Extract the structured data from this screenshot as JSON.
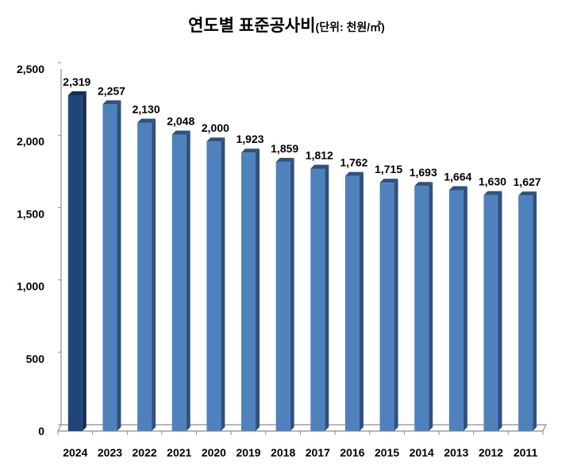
{
  "chart_data": {
    "type": "bar",
    "title": "연도별 표준공사비",
    "subtitle": "(단위: 천원/㎡)",
    "categories": [
      "2024",
      "2023",
      "2022",
      "2021",
      "2020",
      "2019",
      "2018",
      "2017",
      "2016",
      "2015",
      "2014",
      "2013",
      "2012",
      "2011"
    ],
    "values": [
      2319,
      2257,
      2130,
      2048,
      2000,
      1923,
      1859,
      1812,
      1762,
      1715,
      1693,
      1664,
      1630,
      1627
    ],
    "data_labels": [
      "2,319",
      "2,257",
      "2,130",
      "2,048",
      "2,000",
      "1,923",
      "1,859",
      "1,812",
      "1,762",
      "1,715",
      "1,693",
      "1,664",
      "1,630",
      "1,627"
    ],
    "y_ticks": [
      "0",
      "500",
      "1,000",
      "1,500",
      "2,000",
      "2,500"
    ],
    "y_tick_values": [
      0,
      500,
      1000,
      1500,
      2000,
      2500
    ],
    "ylim": [
      0,
      2500
    ],
    "xlabel": "",
    "ylabel": "",
    "grid": false,
    "legend": "none",
    "style": "3d-column",
    "colors": {
      "highlight": "#1F4579",
      "bar": "#4F81BD",
      "bar_side": "#2F5180",
      "axis": "#8C8C8C"
    }
  }
}
